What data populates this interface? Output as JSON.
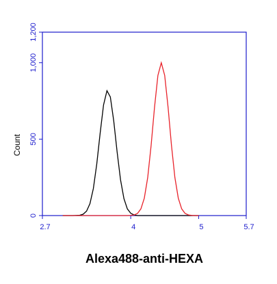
{
  "chart_data": {
    "type": "line",
    "x_label": "Alexa488-anti-HEXA",
    "y_label": "Count",
    "x": [
      3.0,
      3.05,
      3.1,
      3.15,
      3.2,
      3.25,
      3.3,
      3.35,
      3.4,
      3.45,
      3.5,
      3.55,
      3.6,
      3.65,
      3.7,
      3.75,
      3.8,
      3.85,
      3.9,
      3.95,
      4.0,
      4.05,
      4.1,
      4.15,
      4.2,
      4.25,
      4.3,
      4.35,
      4.4,
      4.45,
      4.5,
      4.55,
      4.6,
      4.65,
      4.7,
      4.75,
      4.8,
      4.85,
      4.9,
      4.95,
      5.0
    ],
    "series": [
      {
        "color": "#000000",
        "values": [
          0,
          0,
          0,
          0,
          1,
          2,
          9,
          29,
          78,
          177,
          337,
          539,
          724,
          817,
          776,
          619,
          415,
          234,
          111,
          44,
          15,
          4,
          0,
          0,
          0,
          0,
          0,
          0,
          0,
          0,
          0,
          0,
          0,
          0,
          0,
          0,
          0,
          0,
          0,
          0,
          0
        ]
      },
      {
        "color": "#e8222a",
        "values": [
          0,
          0,
          0,
          0,
          0,
          0,
          0,
          0,
          0,
          0,
          0,
          0,
          0,
          0,
          0,
          0,
          0,
          0,
          0,
          0,
          1,
          4,
          14,
          44,
          114,
          249,
          458,
          707,
          917,
          1000,
          917,
          707,
          458,
          249,
          114,
          44,
          14,
          4,
          1,
          0,
          0
        ]
      }
    ],
    "xlim": [
      2.7,
      5.7
    ],
    "xticks": [
      2.7,
      4,
      5,
      5.7
    ],
    "ylim": [
      0,
      1200
    ],
    "yticks": [
      0,
      500,
      {
        "value": 1000,
        "label": "1,000"
      },
      {
        "value": 1200,
        "label": "1,200"
      }
    ],
    "axis_color": "#1a1acc"
  }
}
